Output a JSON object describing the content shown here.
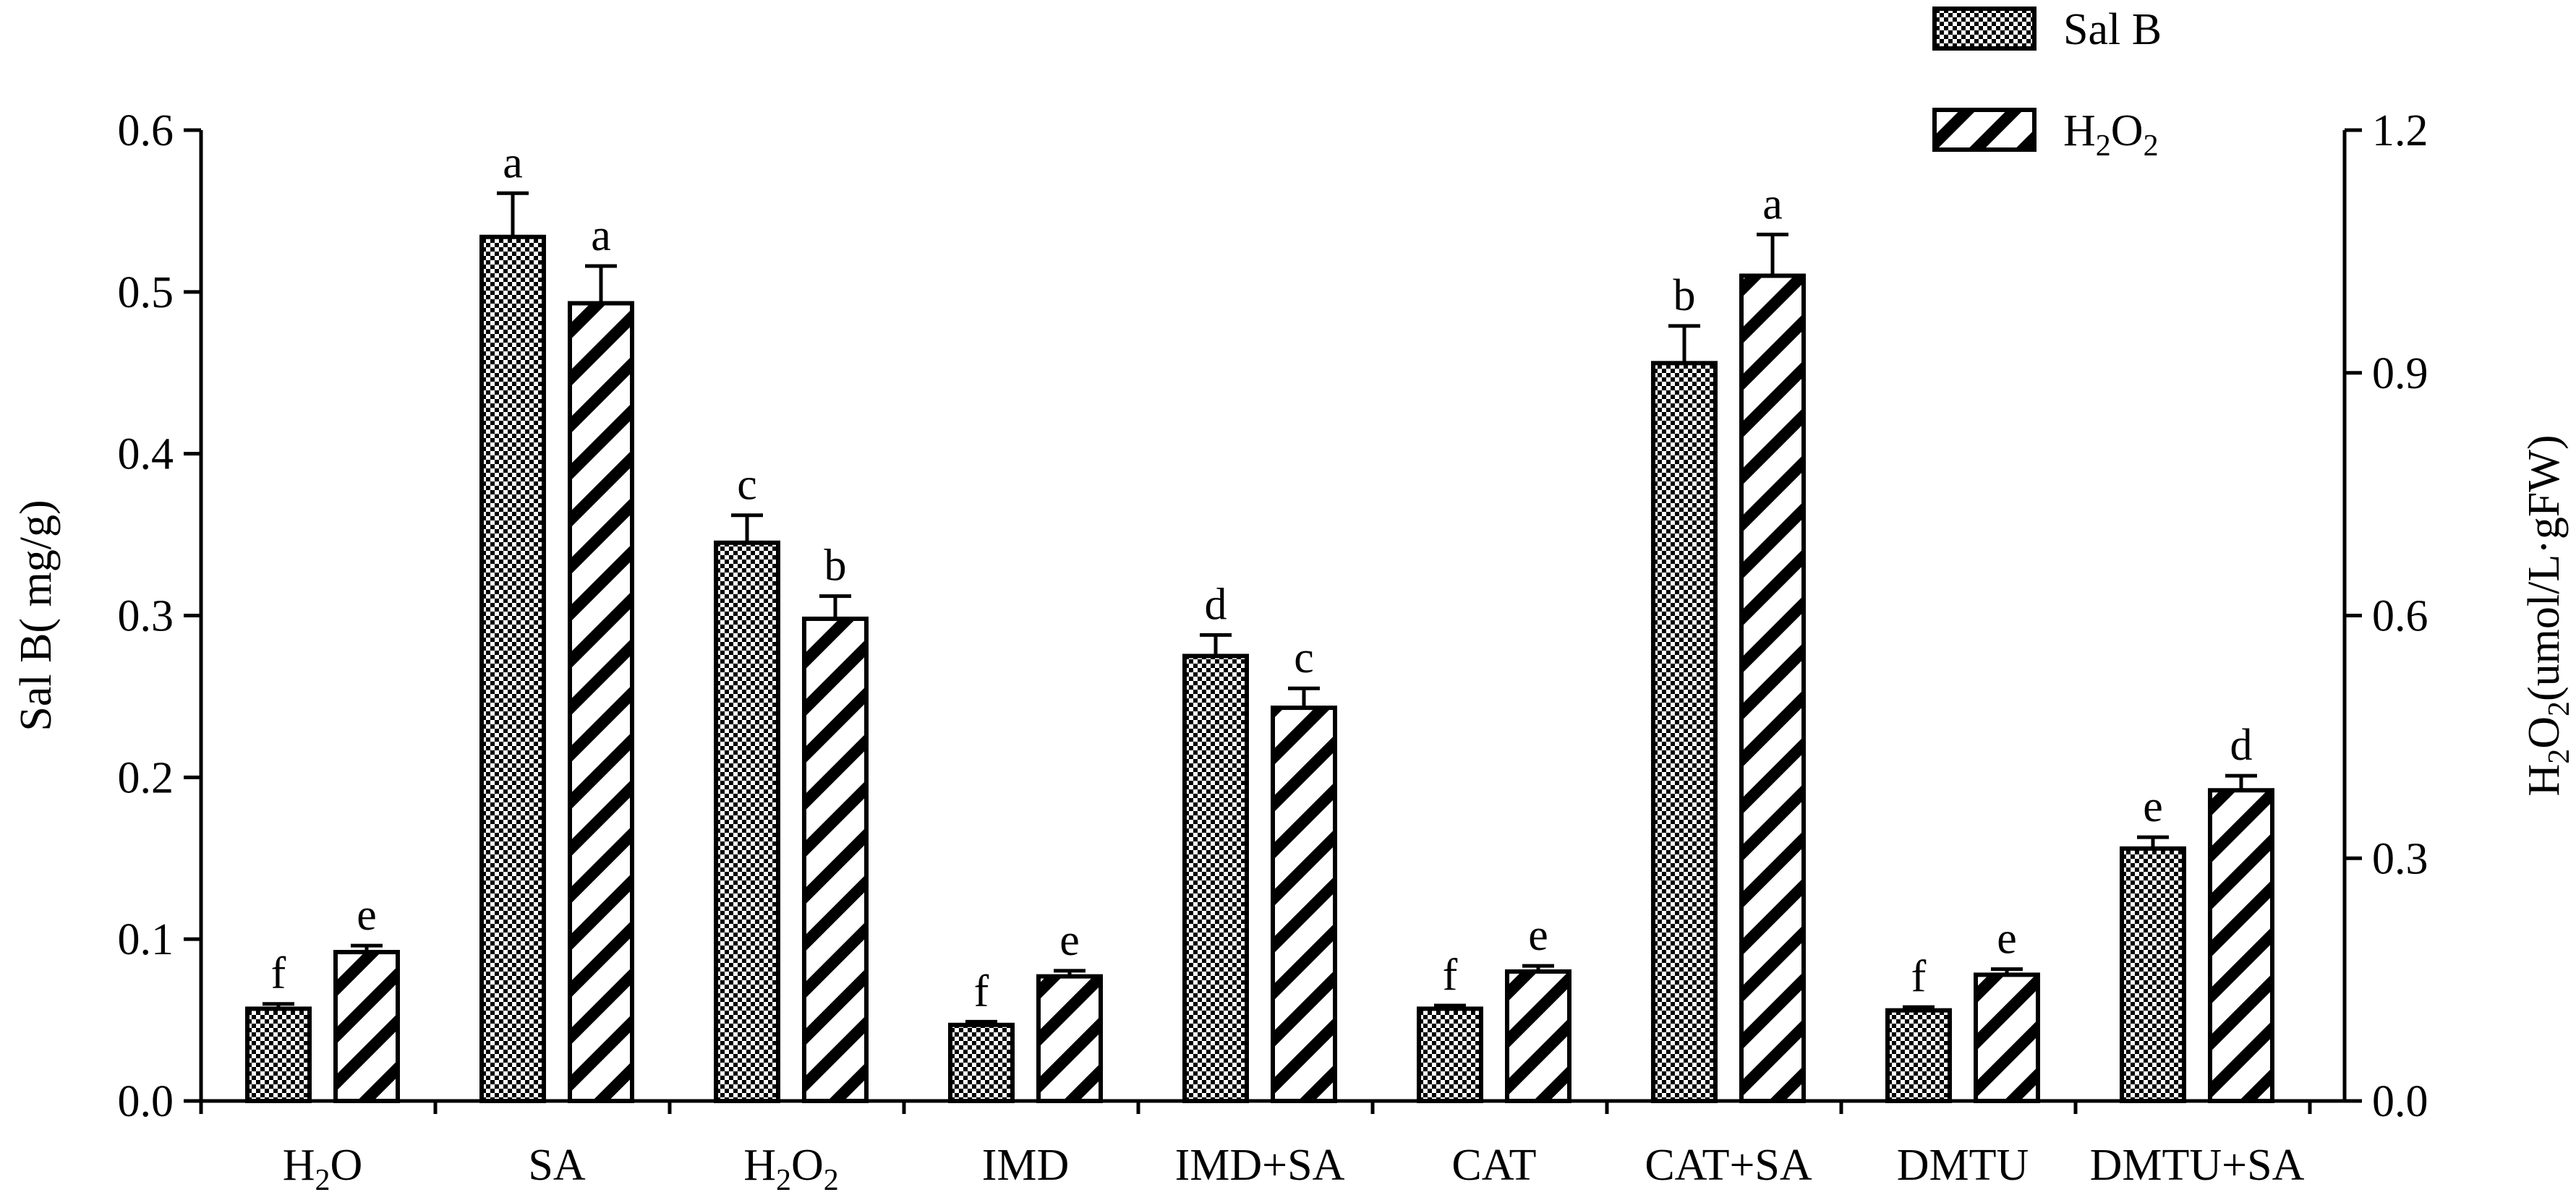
{
  "chart_data": {
    "type": "bar",
    "title": "",
    "categories": [
      "H2O",
      "SA",
      "H2O2",
      "IMD",
      "IMD+SA",
      "CAT",
      "CAT+SA",
      "DMTU",
      "DMTU+SA"
    ],
    "xlabel": "",
    "ylabel_left": "Sal B( mg/g)",
    "ylabel_right": "H2O2(umol/L·gFW)",
    "ylim_left": [
      0,
      0.6
    ],
    "ylim_right": [
      0,
      1.2
    ],
    "yticks_left": [
      "0.0",
      "0.1",
      "0.2",
      "0.3",
      "0.4",
      "0.5",
      "0.6"
    ],
    "yticks_right": [
      "0.0",
      "0.3",
      "0.6",
      "0.9",
      "1.2"
    ],
    "series": [
      {
        "name": "Sal B",
        "axis": "left",
        "pattern": "checker",
        "values": [
          0.057,
          0.534,
          0.345,
          0.047,
          0.275,
          0.057,
          0.456,
          0.056,
          0.156
        ],
        "errors": [
          0.003,
          0.027,
          0.017,
          0.002,
          0.013,
          0.002,
          0.023,
          0.002,
          0.007
        ],
        "letters": [
          "f",
          "a",
          "c",
          "f",
          "d",
          "f",
          "b",
          "f",
          "e"
        ]
      },
      {
        "name": "H2O2",
        "axis": "right",
        "pattern": "hatch",
        "values": [
          0.184,
          0.986,
          0.596,
          0.154,
          0.486,
          0.16,
          1.02,
          0.156,
          0.384
        ],
        "errors": [
          0.008,
          0.046,
          0.028,
          0.007,
          0.024,
          0.007,
          0.051,
          0.007,
          0.018
        ],
        "letters": [
          "e",
          "a",
          "b",
          "e",
          "c",
          "e",
          "a",
          "e",
          "d"
        ]
      }
    ],
    "legend": {
      "position": "top-right",
      "entries": [
        "Sal B",
        "H2O2"
      ]
    }
  }
}
